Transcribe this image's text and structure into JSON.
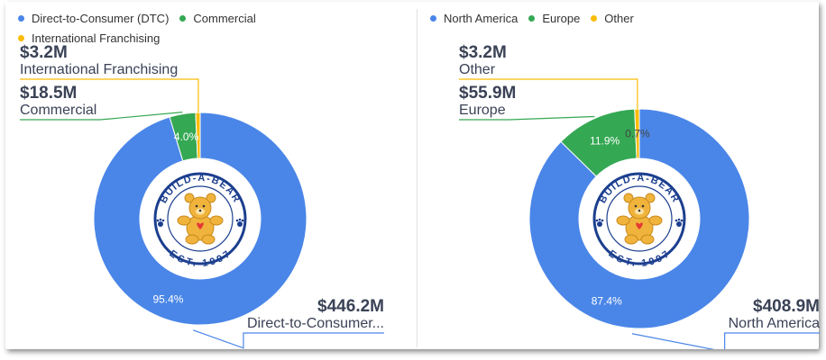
{
  "chart_data": [
    {
      "type": "pie",
      "variant": "donut",
      "legend_position": "top-left",
      "legend": [
        "Direct-to-Consumer (DTC)",
        "Commercial",
        "International Franchising"
      ],
      "series": [
        {
          "name": "Direct-to-Consumer (DTC)",
          "short_label": "Direct-to-Consumer...",
          "amount": "$446.2M",
          "value": 446.2,
          "percent_label": "95.4%",
          "color": "#4a86e8"
        },
        {
          "name": "Commercial",
          "short_label": "Commercial",
          "amount": "$18.5M",
          "value": 18.5,
          "percent_label": "4.0%",
          "color": "#34a853"
        },
        {
          "name": "International Franchising",
          "short_label": "International Franchising",
          "amount": "$3.2M",
          "value": 3.2,
          "percent_label": "",
          "color": "#fbbc04"
        }
      ],
      "center_logo": {
        "top_text": "BUILD-A-BEAR",
        "bottom_text": "EST. 1997"
      }
    },
    {
      "type": "pie",
      "variant": "donut",
      "legend_position": "top-left",
      "legend": [
        "North America",
        "Europe",
        "Other"
      ],
      "series": [
        {
          "name": "North America",
          "short_label": "North America",
          "amount": "$408.9M",
          "value": 408.9,
          "percent_label": "87.4%",
          "color": "#4a86e8"
        },
        {
          "name": "Europe",
          "short_label": "Europe",
          "amount": "$55.9M",
          "value": 55.9,
          "percent_label": "11.9%",
          "color": "#34a853"
        },
        {
          "name": "Other",
          "short_label": "Other",
          "amount": "$3.2M",
          "value": 3.2,
          "percent_label": "0.7%",
          "color": "#fbbc04"
        }
      ],
      "center_logo": {
        "top_text": "BUILD-A-BEAR",
        "bottom_text": "EST. 1997"
      }
    }
  ]
}
